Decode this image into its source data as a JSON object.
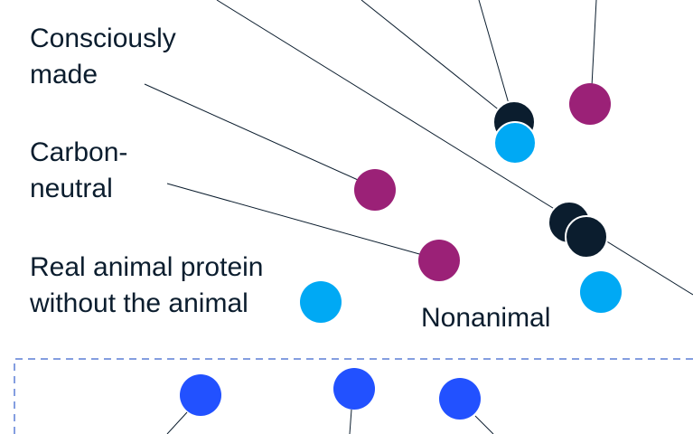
{
  "labels": [
    [
      "Consciously",
      "made"
    ],
    [
      "Carbon-",
      "neutral"
    ],
    [
      "Real animal protein",
      "without the animal"
    ]
  ],
  "region_label": "Nonanimal"
}
